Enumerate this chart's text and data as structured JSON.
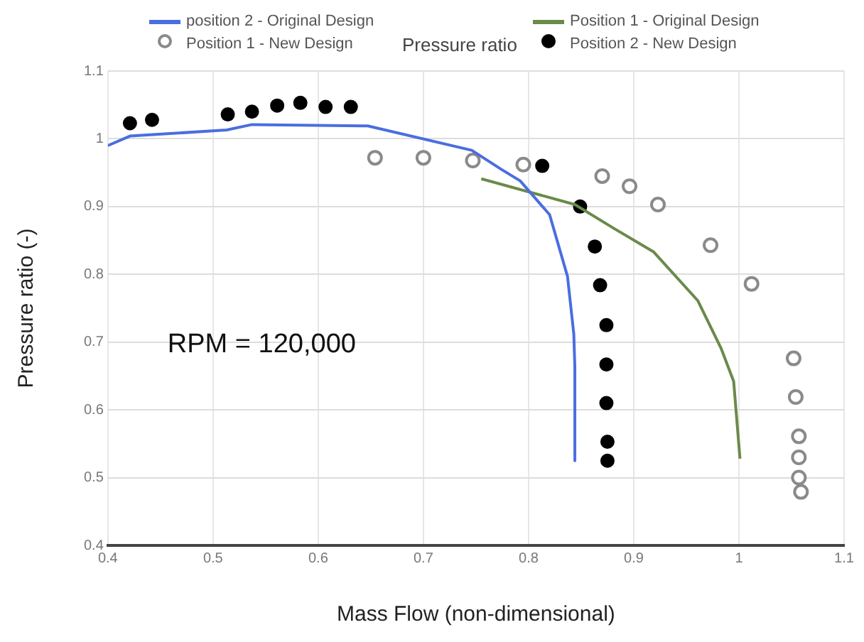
{
  "chart_data": {
    "type": "scatter",
    "title": "Pressure ratio",
    "xlabel": "Mass Flow (non-dimensional)",
    "ylabel": "Pressure ratio (-)",
    "annotations": [
      "RPM = 120,000"
    ],
    "xlim": [
      0.4,
      1.1
    ],
    "xticks": [
      0.4,
      0.5,
      0.6,
      0.7,
      0.8,
      0.9,
      1,
      1.1
    ],
    "ylim": [
      0.4,
      1.1
    ],
    "yticks": [
      0.4,
      0.5,
      0.6,
      0.7,
      0.8,
      0.9,
      1,
      1.1
    ],
    "grid": true,
    "legend": "top",
    "series": [
      {
        "name": "position 2 - Original Design",
        "type": "line",
        "marker": "none",
        "color": "#4a6ee0",
        "x": [
          0.4,
          0.421,
          0.513,
          0.537,
          0.647,
          0.746,
          0.774,
          0.792,
          0.82,
          0.837,
          0.843,
          0.844,
          0.844
        ],
        "values": [
          0.99,
          1.004,
          1.013,
          1.021,
          1.019,
          0.983,
          0.955,
          0.938,
          0.888,
          0.797,
          0.712,
          0.663,
          0.525
        ]
      },
      {
        "name": "Position 1 - Original Design",
        "type": "line",
        "marker": "none",
        "color": "#6a8a4a",
        "x": [
          0.755,
          0.844,
          0.882,
          0.919,
          0.961,
          0.983,
          0.995,
          1.001
        ],
        "values": [
          0.941,
          0.903,
          0.867,
          0.833,
          0.761,
          0.691,
          0.642,
          0.528
        ]
      },
      {
        "name": "Position 1 - New Design",
        "marker": "circle",
        "color": "#8a8a8a",
        "x": [
          0.654,
          0.7,
          0.747,
          0.795,
          0.87,
          0.896,
          0.923,
          0.973,
          1.012,
          1.052,
          1.054,
          1.057,
          1.057,
          1.057,
          1.059
        ],
        "values": [
          0.972,
          0.972,
          0.968,
          0.962,
          0.945,
          0.93,
          0.903,
          0.843,
          0.786,
          0.676,
          0.619,
          0.561,
          0.53,
          0.5,
          0.479
        ]
      },
      {
        "name": "Position 2 - New Design",
        "marker": "circle",
        "color": "#000000",
        "x": [
          0.421,
          0.442,
          0.514,
          0.537,
          0.561,
          0.583,
          0.607,
          0.631,
          0.813,
          0.849,
          0.863,
          0.868,
          0.874,
          0.874,
          0.874,
          0.875,
          0.875
        ],
        "values": [
          1.023,
          1.028,
          1.036,
          1.04,
          1.049,
          1.053,
          1.047,
          1.047,
          0.96,
          0.9,
          0.841,
          0.784,
          0.725,
          0.667,
          0.61,
          0.553,
          0.525
        ]
      }
    ]
  }
}
